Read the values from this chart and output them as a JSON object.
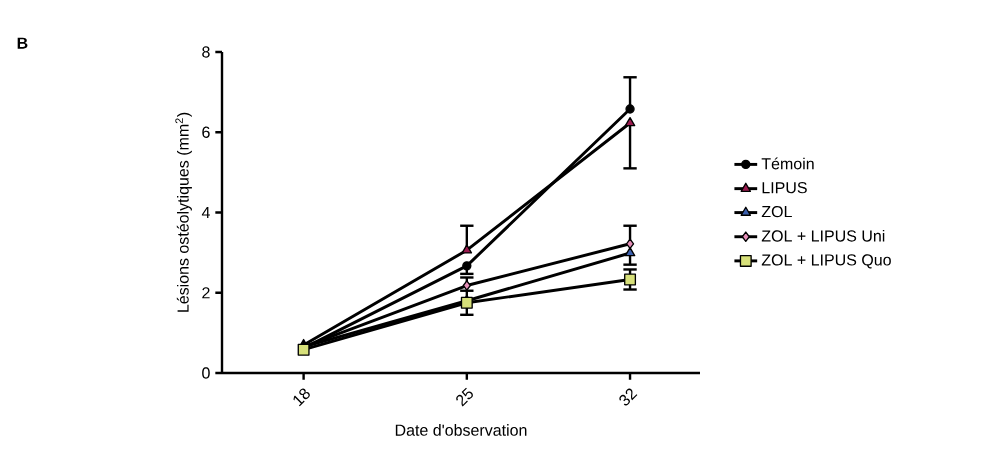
{
  "chart_data": {
    "type": "line",
    "xlabel": "Date d'observation",
    "ylabel": "Lésions ostéolytiques (mm$^{2}$)",
    "annotations": [
      "**B**"
    ],
    "x": [
      18,
      25,
      32
    ],
    "xlim": [
      14.5,
      35
    ],
    "xticks": [
      18,
      25,
      32
    ],
    "ylim": [
      0,
      8
    ],
    "yticks": [
      0,
      2,
      4,
      6,
      8
    ],
    "grid": false,
    "legend": "right",
    "series": [
      {
        "name": "Témoin",
        "color": "#000000",
        "marker": "circle",
        "values": [
          0.62,
          2.67,
          6.58
        ],
        "errors": [
          null,
          [
            2.47,
            2.67
          ],
          [
            6.58,
            7.37
          ]
        ]
      },
      {
        "name": "LIPUS",
        "color": "#9b1b4f",
        "marker": "triangle",
        "values": [
          0.7,
          3.06,
          6.23
        ],
        "errors": [
          null,
          [
            3.06,
            3.67
          ],
          [
            5.1,
            6.23
          ]
        ]
      },
      {
        "name": "ZOL",
        "color": "#3b5fad",
        "marker": "triangle",
        "values": [
          0.65,
          1.8,
          2.99
        ],
        "errors": [
          null,
          [
            1.8,
            2.05
          ],
          [
            2.7,
            2.99
          ]
        ]
      },
      {
        "name": "ZOL + LIPUS Uni",
        "color": "#e58fb8",
        "marker": "diamond",
        "values": [
          0.65,
          2.18,
          3.22
        ],
        "errors": [
          null,
          [
            2.18,
            2.38
          ],
          [
            3.22,
            3.67
          ]
        ]
      },
      {
        "name": "ZOL + LIPUS Quo",
        "color": "#d7e07a",
        "marker": "square",
        "values": [
          0.58,
          1.75,
          2.33
        ],
        "errors": [
          null,
          [
            1.45,
            1.75
          ],
          [
            2.08,
            2.58
          ]
        ]
      }
    ]
  }
}
